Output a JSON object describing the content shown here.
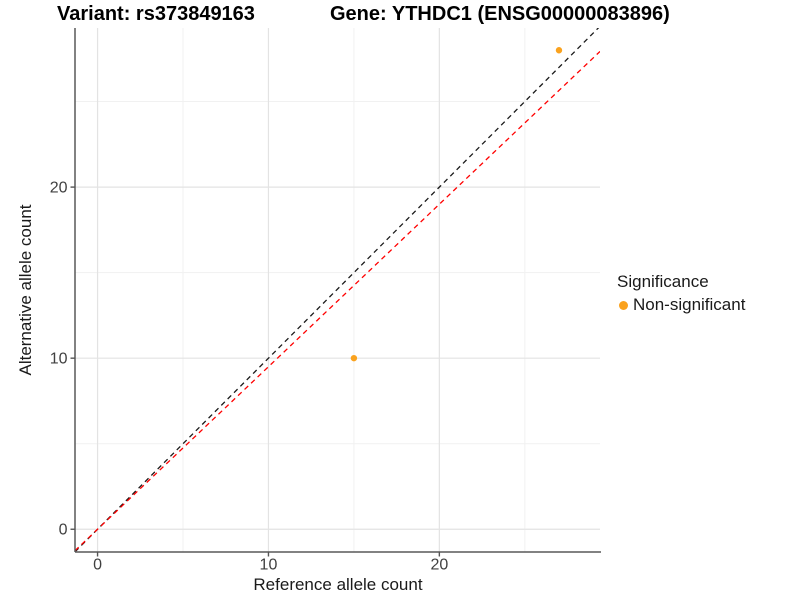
{
  "chart_data": {
    "type": "scatter",
    "titles": {
      "variant": "Variant: rs373849163",
      "gene": "Gene: YTHDC1 (ENSG00000083896)"
    },
    "xlabel": "Reference allele count",
    "ylabel": "Alternative allele count",
    "xlim": [
      -1.32,
      29.4
    ],
    "ylim": [
      -1.33,
      29.3
    ],
    "x_ticks": [
      0,
      10,
      20
    ],
    "y_ticks": [
      0,
      10,
      20
    ],
    "grid": {
      "major": [
        0,
        10,
        20
      ],
      "minor": [
        5,
        15,
        25
      ]
    },
    "series": [
      {
        "name": "Non-significant",
        "color": "#FAA21E",
        "points": [
          [
            15,
            10
          ],
          [
            27,
            28
          ]
        ]
      }
    ],
    "lines": [
      {
        "name": "identity",
        "slope": 1.0,
        "intercept": 0,
        "color": "#1A1A1A",
        "style": "dashed"
      },
      {
        "name": "expected",
        "slope": 0.95,
        "intercept": 0,
        "color": "#FF0000",
        "style": "dashed"
      }
    ],
    "legend_position": "right"
  },
  "legend": {
    "title": "Significance",
    "items": [
      {
        "label": "Non-significant",
        "color": "#FAA21E"
      }
    ]
  }
}
